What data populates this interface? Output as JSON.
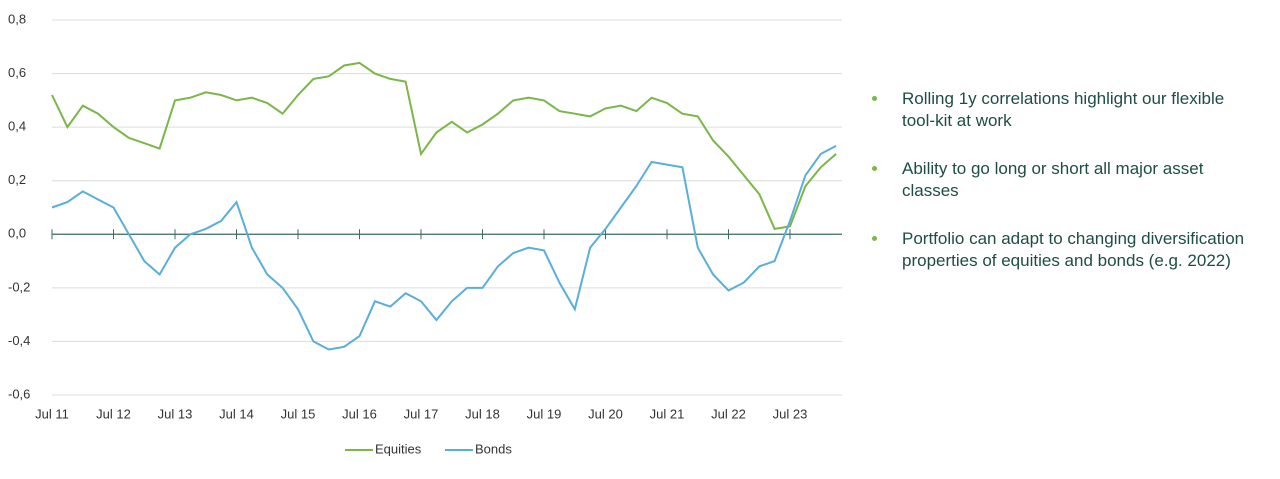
{
  "chart_data": {
    "type": "line",
    "categories": [
      "Jul 11",
      null,
      null,
      null,
      "Jul 12",
      null,
      null,
      null,
      "Jul 13",
      null,
      null,
      null,
      "Jul 14",
      null,
      null,
      null,
      "Jul 15",
      null,
      null,
      null,
      "Jul 16",
      null,
      null,
      null,
      "Jul 17",
      null,
      null,
      null,
      "Jul 18",
      null,
      null,
      null,
      "Jul 19",
      null,
      null,
      null,
      "Jul 20",
      null,
      null,
      null,
      "Jul 21",
      null,
      null,
      null,
      "Jul 22",
      null,
      null,
      null,
      "Jul 23",
      null,
      null,
      null
    ],
    "series": [
      {
        "name": "Equities",
        "color": "#7ab648",
        "values": [
          0.52,
          0.4,
          0.48,
          0.45,
          0.4,
          0.36,
          0.34,
          0.32,
          0.5,
          0.51,
          0.53,
          0.52,
          0.5,
          0.51,
          0.49,
          0.45,
          0.52,
          0.58,
          0.59,
          0.63,
          0.64,
          0.6,
          0.58,
          0.57,
          0.3,
          0.38,
          0.42,
          0.38,
          0.41,
          0.45,
          0.5,
          0.51,
          0.5,
          0.46,
          0.45,
          0.44,
          0.47,
          0.48,
          0.46,
          0.51,
          0.49,
          0.45,
          0.44,
          0.35,
          0.29,
          0.22,
          0.15,
          0.02,
          0.03,
          0.18,
          0.25,
          0.3
        ]
      },
      {
        "name": "Bonds",
        "color": "#5aaedc",
        "values": [
          0.1,
          0.12,
          0.16,
          0.13,
          0.1,
          0.0,
          -0.1,
          -0.15,
          -0.05,
          0.0,
          0.02,
          0.05,
          0.12,
          -0.05,
          -0.15,
          -0.2,
          -0.28,
          -0.4,
          -0.43,
          -0.42,
          -0.38,
          -0.25,
          -0.27,
          -0.22,
          -0.25,
          -0.32,
          -0.25,
          -0.2,
          -0.2,
          -0.12,
          -0.07,
          -0.05,
          -0.06,
          -0.18,
          -0.28,
          -0.05,
          0.02,
          0.1,
          0.18,
          0.27,
          0.26,
          0.25,
          -0.05,
          -0.15,
          -0.21,
          -0.18,
          -0.12,
          -0.1,
          0.05,
          0.22,
          0.3,
          0.33
        ]
      }
    ],
    "ylim": [
      -0.6,
      0.8
    ],
    "yticks": [
      {
        "value": -0.6,
        "label": "-0,6"
      },
      {
        "value": -0.4,
        "label": "-0,4"
      },
      {
        "value": -0.2,
        "label": "-0,2"
      },
      {
        "value": 0,
        "label": "0,0"
      },
      {
        "value": 0.2,
        "label": "0,2"
      },
      {
        "value": 0.4,
        "label": "0,4"
      },
      {
        "value": 0.6,
        "label": "0,6"
      },
      {
        "value": 0.8,
        "label": "0,8"
      }
    ],
    "grid": true,
    "legend": "bottom",
    "notes": [
      "Rolling 1y correlations highlight our flexible tool-kit at work",
      "Ability to go long or short all major asset classes",
      "Portfolio can adapt to changing diversification properties of equities and bonds (e.g. 2022)"
    ]
  }
}
